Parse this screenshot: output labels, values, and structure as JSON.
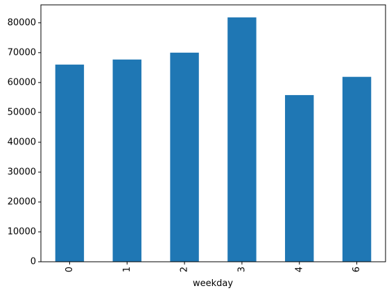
{
  "chart_data": {
    "type": "bar",
    "x_label": "weekday",
    "categories": [
      "0",
      "1",
      "2",
      "3",
      "4",
      "6"
    ],
    "values": [
      66000,
      67700,
      70000,
      81800,
      55800,
      61900
    ],
    "color": "#1f77b4",
    "ylim": [
      0,
      86000
    ],
    "yticks": [
      0,
      10000,
      20000,
      30000,
      40000,
      50000,
      60000,
      70000,
      80000
    ]
  }
}
